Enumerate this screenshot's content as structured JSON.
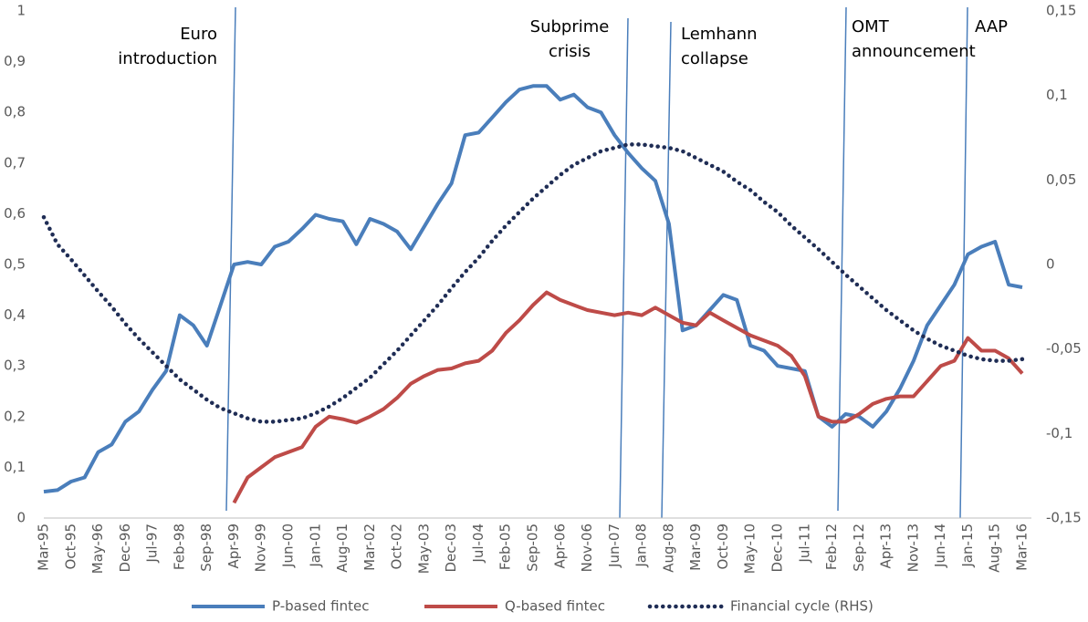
{
  "chart_data": {
    "type": "line",
    "categories": [
      "Mar-95",
      null,
      "Oct-95",
      null,
      "May-96",
      null,
      "Dec-96",
      null,
      "Jul-97",
      null,
      "Feb-98",
      null,
      "Sep-98",
      null,
      "Apr-99",
      null,
      "Nov-99",
      null,
      "Jun-00",
      null,
      "Jan-01",
      null,
      "Aug-01",
      null,
      "Mar-02",
      null,
      "Oct-02",
      null,
      "May-03",
      null,
      "Dec-03",
      null,
      "Jul-04",
      null,
      "Feb-05",
      null,
      "Sep-05",
      null,
      "Apr-06",
      null,
      "Nov-06",
      null,
      "Jun-07",
      null,
      "Jan-08",
      null,
      "Aug-08",
      null,
      "Mar-09",
      null,
      "Oct-09",
      null,
      "May-10",
      null,
      "Dec-10",
      null,
      "Jul-11",
      null,
      "Feb-12",
      null,
      "Sep-12",
      null,
      "Apr-13",
      null,
      "Nov-13",
      null,
      "Jun-14",
      null,
      "Jan-15",
      null,
      "Aug-15",
      null,
      "Mar-16"
    ],
    "series": [
      {
        "name": "P-based fintec",
        "color": "#4a7ebb",
        "values": [
          0.052,
          0.055,
          0.072,
          0.08,
          0.13,
          0.145,
          0.19,
          0.21,
          0.253,
          0.29,
          0.4,
          0.38,
          0.34,
          0.42,
          0.5,
          0.505,
          0.5,
          0.535,
          0.545,
          0.57,
          0.598,
          0.59,
          0.585,
          0.54,
          0.59,
          0.58,
          0.565,
          0.53,
          0.575,
          0.62,
          0.66,
          0.755,
          0.76,
          0.79,
          0.82,
          0.845,
          0.852,
          0.852,
          0.825,
          0.835,
          0.81,
          0.8,
          0.755,
          0.72,
          0.69,
          0.665,
          0.58,
          0.37,
          0.38,
          0.41,
          0.44,
          0.43,
          0.34,
          0.33,
          0.3,
          0.295,
          0.29,
          0.2,
          0.18,
          0.205,
          0.2,
          0.18,
          0.21,
          0.255,
          0.31,
          0.38,
          0.42,
          0.46,
          0.52,
          0.535,
          0.545,
          0.46,
          0.455
        ]
      },
      {
        "name": "Q-based fintec",
        "color": "#be4b48",
        "values": [
          null,
          null,
          null,
          null,
          null,
          null,
          null,
          null,
          null,
          null,
          null,
          null,
          null,
          null,
          0.03,
          0.08,
          0.1,
          0.12,
          0.13,
          0.14,
          0.18,
          0.2,
          0.195,
          0.188,
          0.2,
          0.215,
          0.237,
          0.265,
          0.28,
          0.292,
          0.295,
          0.305,
          0.31,
          0.33,
          0.365,
          0.39,
          0.42,
          0.445,
          0.43,
          0.42,
          0.41,
          0.405,
          0.4,
          0.405,
          0.4,
          0.415,
          0.4,
          0.385,
          0.38,
          0.405,
          0.39,
          0.375,
          0.36,
          0.35,
          0.34,
          0.32,
          0.28,
          0.2,
          0.19,
          0.19,
          0.205,
          0.225,
          0.235,
          0.24,
          0.24,
          0.27,
          0.3,
          0.31,
          0.355,
          0.33,
          0.33,
          0.315,
          0.285
        ]
      },
      {
        "name": "Financial cycle (RHS)",
        "color": "#1f2d55",
        "axis": "y2",
        "dashed": true,
        "values": [
          0.028,
          0.012,
          0.003,
          -0.0065,
          -0.016,
          -0.025,
          -0.035,
          -0.044,
          -0.052,
          -0.06,
          -0.068,
          -0.074,
          -0.08,
          -0.085,
          -0.088,
          -0.091,
          -0.093,
          -0.093,
          -0.092,
          -0.091,
          -0.088,
          -0.084,
          -0.079,
          -0.073,
          -0.067,
          -0.059,
          -0.051,
          -0.042,
          -0.033,
          -0.024,
          -0.014,
          -0.0045,
          0.004,
          0.014,
          0.023,
          0.031,
          0.039,
          0.046,
          0.053,
          0.059,
          0.063,
          0.067,
          0.069,
          0.071,
          0.071,
          0.07,
          0.069,
          0.067,
          0.063,
          0.059,
          0.055,
          0.049,
          0.044,
          0.037,
          0.031,
          0.023,
          0.016,
          0.009,
          0.0015,
          -0.006,
          -0.013,
          -0.02,
          -0.027,
          -0.033,
          -0.039,
          -0.044,
          -0.048,
          -0.051,
          -0.054,
          -0.056,
          -0.057,
          -0.057,
          -0.056
        ]
      }
    ],
    "ylim": [
      0,
      1
    ],
    "yticks": [
      0,
      {
        "value": 0.1,
        "label": "0,1"
      },
      {
        "value": 0.2,
        "label": "0,2"
      },
      {
        "value": 0.3,
        "label": "0,3"
      },
      {
        "value": 0.4,
        "label": "0,4"
      },
      {
        "value": 0.5,
        "label": "0,5"
      },
      {
        "value": 0.6,
        "label": "0,6"
      },
      {
        "value": 0.7,
        "label": "0,7"
      },
      {
        "value": 0.8,
        "label": "0,8"
      },
      {
        "value": 0.9,
        "label": "0,9"
      },
      1
    ],
    "y2lim": [
      -0.15,
      0.15
    ],
    "y2ticks": [
      {
        "value": -0.15,
        "label": "-0,15"
      },
      {
        "value": -0.1,
        "label": "-0,1"
      },
      {
        "value": -0.05,
        "label": "-0,05"
      },
      0,
      {
        "value": 0.05,
        "label": "0,05"
      },
      {
        "value": 0.1,
        "label": "0,1"
      },
      {
        "value": 0.15,
        "label": "0,15"
      }
    ],
    "annotations": [
      {
        "lines": [
          "Euro",
          "introduction"
        ]
      },
      {
        "lines": [
          "Subprime",
          "crisis"
        ]
      },
      {
        "lines": [
          "Lemhann",
          "collapse"
        ]
      },
      {
        "lines": [
          "OMT",
          "announcement"
        ]
      },
      {
        "lines": [
          "AAP"
        ]
      }
    ],
    "grid": false,
    "legend": "bottom"
  }
}
